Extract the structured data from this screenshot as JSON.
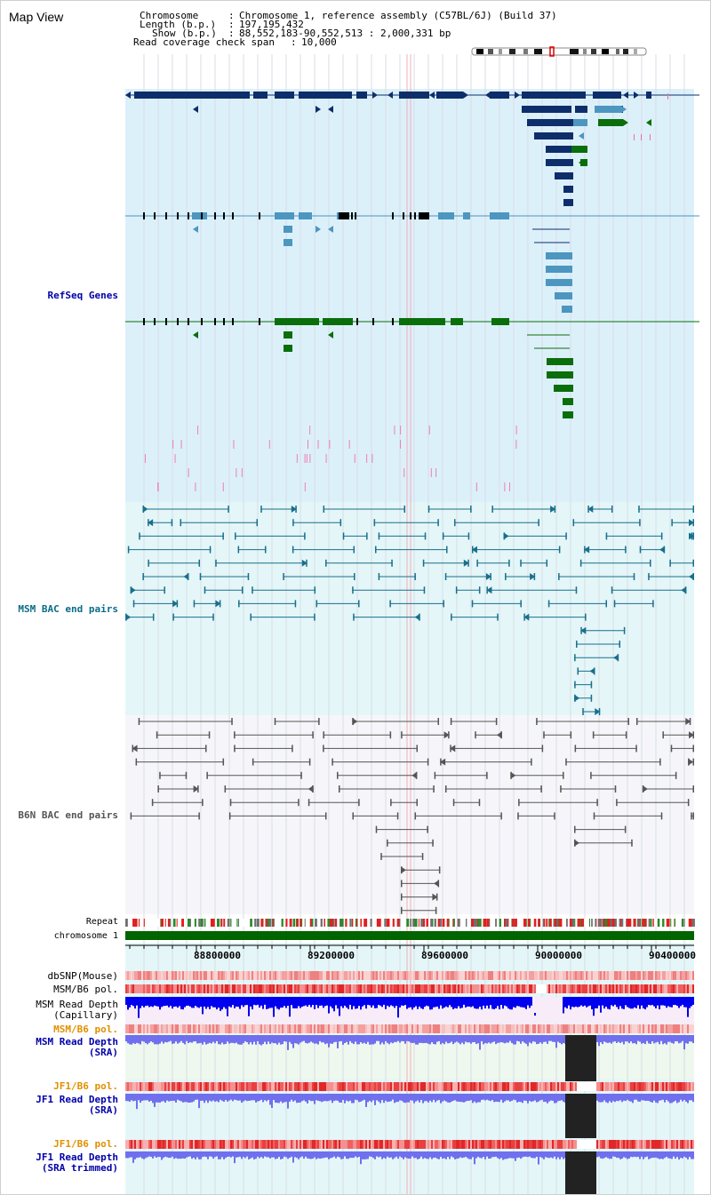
{
  "title": "Map View",
  "header": {
    "chromosome_key": "Chromosome",
    "chromosome_val": "Chromosome 1, reference assembly (C57BL/6J) (Build 37)",
    "length_key": "Length (b.p.)",
    "length_val": "197,195,432",
    "show_key": "Show (b.p.)",
    "show_val": "88,552,183-90,552,513 : 2,000,331 bp",
    "coverage_key": "Read coverage check span",
    "coverage_val": "10,000"
  },
  "tracks": {
    "refseq": "RefSeq Genes",
    "msm_bac": "MSM BAC end pairs",
    "b6n_bac": "B6N BAC end pairs",
    "repeat": "Repeat",
    "chromosome": "chromosome 1",
    "dbsnp": "dbSNP(Mouse)",
    "msm_b6_pol": "MSM/B6 pol.",
    "msm_read_depth_cap_1": "MSM Read Depth",
    "msm_read_depth_cap_2": "(Capillary)",
    "msm_b6_pol_2": "MSM/B6 pol.",
    "msm_read_depth_sra_1": "MSM Read Depth",
    "msm_read_depth_sra_2": "(SRA)",
    "jf1_b6_pol": "JF1/B6 pol.",
    "jf1_read_depth_1": "JF1 Read Depth",
    "jf1_read_depth_2": "(SRA)",
    "jf1_b6_pol_2": "JF1/B6 pol.",
    "jf1_trim_1": "JF1 Read Depth",
    "jf1_trim_2": "(SRA trimmed)"
  },
  "axis": {
    "ticks": [
      "88800000",
      "89200000",
      "89600000",
      "90000000",
      "90400000"
    ]
  },
  "colors": {
    "refseq_bg": "#dcf0fa",
    "msm_bg": "#e4f6f8",
    "b6n_bg": "#f6f6fa",
    "refseq_dark": "#0d2e6a",
    "refseq_mid": "#4c96c0",
    "refseq_green": "#0a6e0a",
    "msm_line": "#1a6e8c",
    "b6n_line": "#555555",
    "label_blue": "#0000aa",
    "label_teal": "#0a6c88",
    "label_orange": "#e09000",
    "chrom_bar": "#006400",
    "depth_blue": "#0000ee",
    "depth_sra": "#7070ee"
  }
}
